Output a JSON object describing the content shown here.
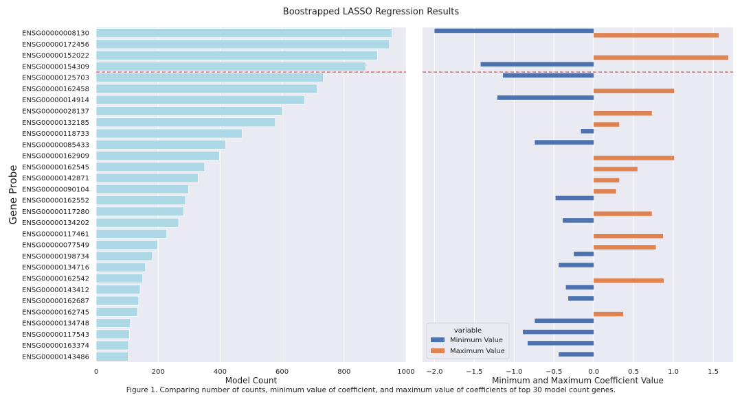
{
  "figure": {
    "title": "Boostrapped LASSO Regression Results",
    "caption": "Figure 1. Comparing number of counts, minimum value of coefficient, and maximum value of coefficients of top 30 model count genes."
  },
  "colors": {
    "panel_bg": "#eaeaf2",
    "count_bar": "#add8e6",
    "min_bar": "#4c72b0",
    "max_bar": "#dd8452",
    "ref_line": "#e0605a"
  },
  "chart_data": [
    {
      "type": "bar",
      "orientation": "horizontal",
      "ylabel": "Gene Probe",
      "xlabel": "Model Count",
      "xlim": [
        0,
        1000
      ],
      "xticks": [
        "0",
        "200",
        "400",
        "600",
        "800",
        "1000"
      ],
      "xtick_values": [
        0,
        200,
        400,
        600,
        800,
        1000
      ],
      "grid": true,
      "reference_line_after_index": 3,
      "categories": [
        "ENSG00000008130",
        "ENSG00000172456",
        "ENSG00000152022",
        "ENSG00000154309",
        "ENSG00000125703",
        "ENSG00000162458",
        "ENSG00000014914",
        "ENSG00000028137",
        "ENSG00000132185",
        "ENSG00000118733",
        "ENSG00000085433",
        "ENSG00000162909",
        "ENSG00000162545",
        "ENSG00000142871",
        "ENSG00000090104",
        "ENSG00000162552",
        "ENSG00000117280",
        "ENSG00000134202",
        "ENSG00000117461",
        "ENSG00000077549",
        "ENSG00000198734",
        "ENSG00000134716",
        "ENSG00000162542",
        "ENSG00000143412",
        "ENSG00000162687",
        "ENSG00000162745",
        "ENSG00000134748",
        "ENSG00000117543",
        "ENSG00000163374",
        "ENSG00000143486"
      ],
      "values": [
        955,
        946,
        908,
        870,
        733,
        713,
        673,
        600,
        578,
        471,
        418,
        398,
        350,
        329,
        298,
        288,
        282,
        266,
        228,
        198,
        181,
        159,
        150,
        142,
        137,
        133,
        110,
        107,
        104,
        103
      ]
    },
    {
      "type": "bar",
      "orientation": "horizontal",
      "xlabel": "Minimum and Maximum Coefficient Value",
      "xlim": [
        -2.15,
        1.75
      ],
      "xticks": [
        "−2.0",
        "−1.5",
        "−1.0",
        "−0.5",
        "0.0",
        "0.5",
        "1.0",
        "1.5"
      ],
      "xtick_values": [
        -2.0,
        -1.5,
        -1.0,
        -0.5,
        0.0,
        0.5,
        1.0,
        1.5
      ],
      "grid": true,
      "legend": {
        "title": "variable",
        "placement": "lower-left",
        "entries": [
          "Minimum Value",
          "Maximum Value"
        ]
      },
      "series": [
        {
          "name": "Minimum Value",
          "values": [
            -2.0,
            0,
            0,
            -1.42,
            -1.14,
            0,
            -1.21,
            0,
            0,
            -0.16,
            -0.74,
            0,
            0,
            0,
            0,
            -0.48,
            0,
            -0.39,
            0,
            0,
            -0.25,
            -0.44,
            0,
            -0.35,
            -0.32,
            0,
            -0.74,
            -0.89,
            -0.83,
            -0.44
          ]
        },
        {
          "name": "Maximum Value",
          "values": [
            1.57,
            0,
            1.69,
            0,
            0,
            1.01,
            0,
            0.73,
            0.32,
            0,
            0,
            1.01,
            0.55,
            0.32,
            0.28,
            0,
            0.73,
            0,
            0.87,
            0.78,
            0,
            0,
            0.88,
            0,
            0,
            0.37,
            0,
            0,
            0,
            0
          ]
        }
      ]
    }
  ]
}
